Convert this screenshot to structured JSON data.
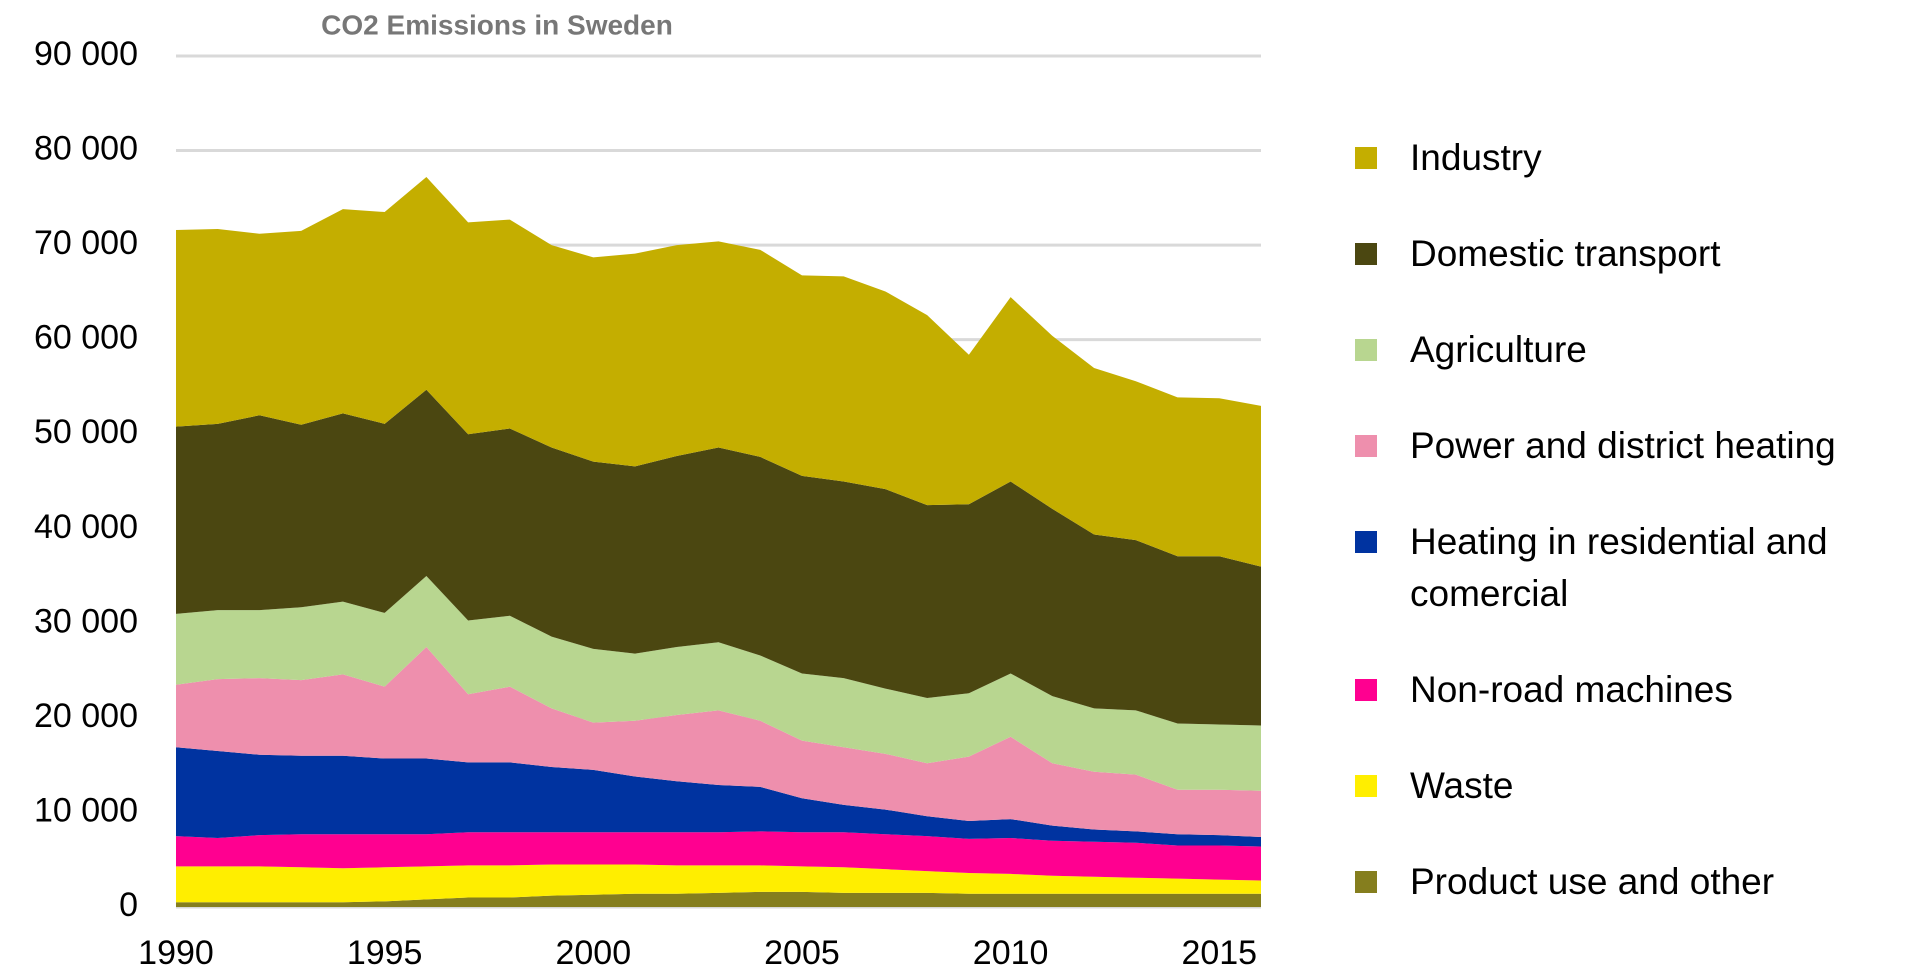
{
  "chart_data": {
    "type": "stacked_area",
    "title": "CO2 Emissions in Sweden",
    "x": [
      1990,
      1991,
      1992,
      1993,
      1994,
      1995,
      1996,
      1997,
      1998,
      1999,
      2000,
      2001,
      2002,
      2003,
      2004,
      2005,
      2006,
      2007,
      2008,
      2009,
      2010,
      2011,
      2012,
      2013,
      2014,
      2015,
      2016
    ],
    "xlim": [
      1990,
      2016
    ],
    "xticks": [
      1990,
      1995,
      2000,
      2005,
      2010,
      2015
    ],
    "ylim": [
      0,
      90000
    ],
    "yticks": [
      0,
      {
        "value": 10000,
        "label": "10 000"
      },
      {
        "value": 20000,
        "label": "20 000"
      },
      {
        "value": 30000,
        "label": "30 000"
      },
      {
        "value": 40000,
        "label": "40 000"
      },
      {
        "value": 50000,
        "label": "50 000"
      },
      {
        "value": 60000,
        "label": "60 000"
      },
      {
        "value": 70000,
        "label": "70 000"
      },
      {
        "value": 80000,
        "label": "80 000"
      },
      {
        "value": 90000,
        "label": "90 000"
      }
    ],
    "grid": true,
    "legend": "right",
    "series": [
      {
        "name": "Industry",
        "color": "#c4ae00",
        "values": [
          20800,
          20600,
          19200,
          20500,
          21600,
          22400,
          22500,
          22400,
          22100,
          21400,
          21600,
          22500,
          22300,
          21800,
          21900,
          21200,
          21700,
          20900,
          20100,
          15800,
          19500,
          18300,
          17600,
          16800,
          16800,
          16700,
          17000
        ]
      },
      {
        "name": "Domestic transport",
        "color": "#4b4711",
        "values": [
          19800,
          19700,
          20600,
          19300,
          19900,
          20000,
          19700,
          19700,
          19800,
          20000,
          19800,
          19800,
          20200,
          20600,
          21000,
          20900,
          20800,
          21100,
          20400,
          20000,
          20300,
          19800,
          18400,
          18000,
          17700,
          17800,
          16800
        ]
      },
      {
        "name": "Agriculture",
        "color": "#b8d690",
        "values": [
          7500,
          7300,
          7200,
          7700,
          7700,
          7800,
          7500,
          7800,
          7500,
          7600,
          7800,
          7100,
          7200,
          7200,
          6900,
          7100,
          7300,
          6900,
          6900,
          6700,
          6700,
          7100,
          6700,
          6800,
          7000,
          6900,
          6900
        ]
      },
      {
        "name": "Power and district heating",
        "color": "#ee8fad",
        "values": [
          6600,
          7600,
          8100,
          8000,
          8600,
          7600,
          11800,
          7200,
          8000,
          6200,
          5000,
          5900,
          7000,
          7900,
          7000,
          6100,
          6100,
          5900,
          5600,
          6800,
          8700,
          6600,
          6100,
          6000,
          4700,
          4800,
          4900
        ]
      },
      {
        "name": "Heating in residential and comercial",
        "color": "#0033a0",
        "values": [
          9400,
          9200,
          8500,
          8300,
          8300,
          8000,
          8000,
          7400,
          7400,
          6900,
          6600,
          5900,
          5400,
          5000,
          4700,
          3600,
          2900,
          2600,
          2100,
          1900,
          2000,
          1600,
          1300,
          1200,
          1200,
          1100,
          1000
        ]
      },
      {
        "name": "Non-road machines",
        "color": "#ff0090",
        "values": [
          3200,
          3000,
          3300,
          3500,
          3600,
          3500,
          3400,
          3500,
          3500,
          3400,
          3400,
          3400,
          3500,
          3500,
          3600,
          3600,
          3700,
          3700,
          3700,
          3600,
          3800,
          3700,
          3700,
          3700,
          3500,
          3600,
          3600
        ]
      },
      {
        "name": "Waste",
        "color": "#ffee00",
        "values": [
          3800,
          3800,
          3800,
          3700,
          3600,
          3600,
          3500,
          3400,
          3400,
          3300,
          3200,
          3100,
          3000,
          2900,
          2800,
          2700,
          2700,
          2500,
          2300,
          2200,
          2100,
          1900,
          1800,
          1700,
          1600,
          1500,
          1400
        ]
      },
      {
        "name": "Product use and other",
        "color": "#857e1e",
        "values": [
          500,
          500,
          500,
          500,
          500,
          600,
          800,
          1000,
          1000,
          1200,
          1300,
          1400,
          1400,
          1500,
          1600,
          1600,
          1500,
          1500,
          1500,
          1400,
          1400,
          1400,
          1400,
          1400,
          1400,
          1400,
          1400
        ]
      }
    ]
  }
}
